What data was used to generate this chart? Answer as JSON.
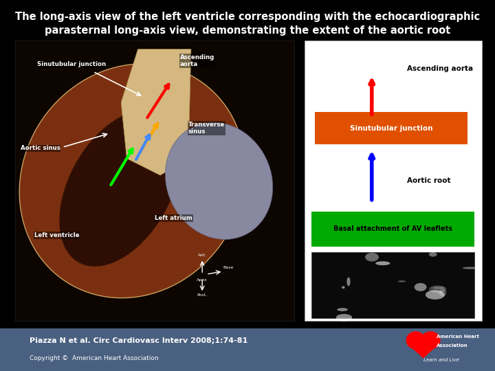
{
  "bg_color": "#000000",
  "footer_bg": "#4a6080",
  "title_line1": "The long-axis view of the left ventricle corresponding with the echocardiographic",
  "title_line2": "parasternal long-axis view, demonstrating the extent of the aortic root",
  "title_color": "#ffffff",
  "title_fontsize": 10.5,
  "citation": "Piazza N et al. Circ Cardiovasc Interv 2008;1:74-81",
  "copyright": "Copyright ©  American Heart Association",
  "citation_color": "#ffffff",
  "citation_fontsize": 8,
  "diagram_labels": {
    "ascending_aorta": "Ascending aorta",
    "sinutubular_junction": "Sinutubular junction",
    "aortic_root": "Aortic root",
    "basal_attachment": "Basal attachment of AV leaflets"
  },
  "diagram_colors": {
    "sinutubular_box": "#e05000",
    "basal_box": "#00aa00",
    "arrow_red": "#ff2020",
    "arrow_blue": "#2050ff",
    "text_white": "#ffffff",
    "text_black": "#000000"
  }
}
